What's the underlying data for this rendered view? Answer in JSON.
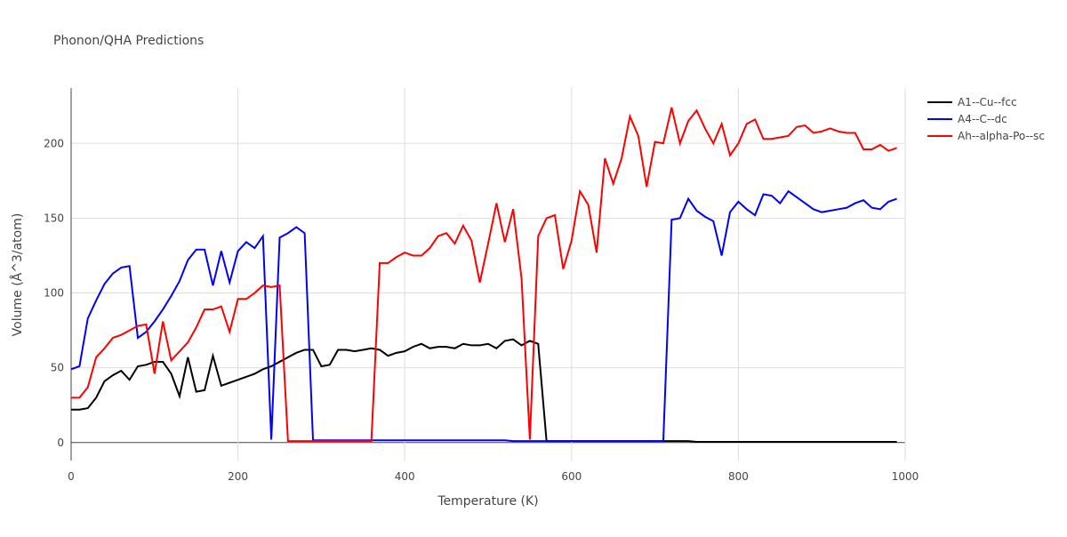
{
  "chart_data": {
    "type": "line",
    "title": "Phonon/QHA Predictions",
    "x_label": "Temperature (K)",
    "y_label": "Volume (Å^3/atom)",
    "x": [
      0,
      10,
      20,
      30,
      40,
      50,
      60,
      70,
      80,
      90,
      100,
      110,
      120,
      130,
      140,
      150,
      160,
      170,
      180,
      190,
      200,
      210,
      220,
      230,
      240,
      250,
      260,
      270,
      280,
      290,
      300,
      310,
      320,
      330,
      340,
      350,
      360,
      370,
      380,
      390,
      400,
      410,
      420,
      430,
      440,
      450,
      460,
      470,
      480,
      490,
      500,
      510,
      520,
      530,
      540,
      550,
      560,
      570,
      580,
      590,
      600,
      610,
      620,
      630,
      640,
      650,
      660,
      670,
      680,
      690,
      700,
      710,
      720,
      730,
      740,
      750,
      760,
      770,
      780,
      790,
      800,
      810,
      820,
      830,
      840,
      850,
      860,
      870,
      880,
      890,
      900,
      910,
      920,
      930,
      940,
      950,
      960,
      970,
      980,
      990
    ],
    "series": [
      {
        "name": "A1--Cu--fcc",
        "color": "#000000",
        "values": [
          22,
          22,
          23,
          30,
          41,
          45,
          48,
          42,
          51,
          52,
          54,
          54,
          46,
          31,
          57,
          34,
          35,
          58,
          38,
          40,
          42,
          44,
          46,
          49,
          51,
          54,
          57,
          60,
          62,
          62,
          51,
          52,
          62,
          62,
          61,
          62,
          63,
          62,
          58,
          60,
          61,
          64,
          66,
          63,
          64,
          64,
          63,
          66,
          65,
          65,
          66,
          63,
          68,
          69,
          65,
          68,
          66,
          1,
          1,
          1,
          1,
          1,
          1,
          1,
          1,
          1,
          1,
          1,
          1,
          1,
          1,
          1,
          1,
          1,
          1,
          0.5,
          0.5,
          0.5,
          0.5,
          0.5,
          0.5,
          0.5,
          0.5,
          0.5,
          0.5,
          0.5,
          0.5,
          0.5,
          0.5,
          0.5,
          0.5,
          0.5,
          0.5,
          0.5,
          0.5,
          0.5,
          0.5,
          0.5,
          0.5,
          0.5
        ]
      },
      {
        "name": "A4--C--dc",
        "color": "#0000ff",
        "values": [
          49,
          51,
          83,
          95,
          106,
          113,
          117,
          118,
          70,
          74,
          81,
          89,
          98,
          108,
          122,
          129,
          129,
          105,
          128,
          107,
          128,
          134,
          130,
          138,
          2,
          137,
          140,
          144,
          140,
          1.5,
          1.5,
          1.5,
          1.5,
          1.5,
          1.5,
          1.5,
          1.5,
          1.5,
          1.5,
          1.5,
          1.5,
          1.5,
          1.5,
          1.5,
          1.5,
          1.5,
          1.5,
          1.5,
          1.5,
          1.5,
          1.5,
          1.5,
          1.5,
          1,
          1,
          1,
          1,
          1,
          1,
          1,
          1,
          1,
          1,
          1,
          1,
          1,
          1,
          1,
          1,
          1,
          1,
          1,
          149,
          150,
          163,
          155,
          151,
          148,
          125,
          154,
          161,
          156,
          152,
          166,
          165,
          160,
          168,
          164,
          160,
          156,
          154,
          155,
          156,
          157,
          160,
          162,
          157,
          156,
          161,
          163
        ]
      },
      {
        "name": "Ah--alpha-Po--sc",
        "color": "#ff0000",
        "values": [
          30,
          30,
          37,
          57,
          63,
          70,
          72,
          75,
          78,
          79,
          46,
          81,
          55,
          61,
          67,
          77,
          89,
          89,
          91,
          74,
          96,
          96,
          100,
          105,
          104,
          105,
          1,
          1,
          1,
          1,
          1,
          1,
          1,
          1,
          1,
          1,
          1,
          120,
          120,
          124,
          127,
          125,
          125,
          130,
          138,
          140,
          133,
          145,
          135,
          107,
          133,
          160,
          134,
          156,
          110,
          2,
          138,
          150,
          152,
          116,
          135,
          168,
          159,
          127,
          190,
          173,
          190,
          218,
          205,
          171,
          201,
          200,
          224,
          200,
          215,
          222,
          210,
          200,
          213,
          192,
          200,
          213,
          216,
          203,
          203,
          204,
          205,
          211,
          212,
          207,
          208,
          210,
          208,
          207,
          207,
          196,
          196,
          199,
          195,
          197
        ]
      }
    ],
    "xlim": [
      0,
      1000
    ],
    "ylim": [
      -12,
      237
    ],
    "xticks": [
      0,
      200,
      400,
      600,
      800,
      1000
    ],
    "yticks": [
      0,
      50,
      100,
      150,
      200
    ],
    "grid": true
  }
}
